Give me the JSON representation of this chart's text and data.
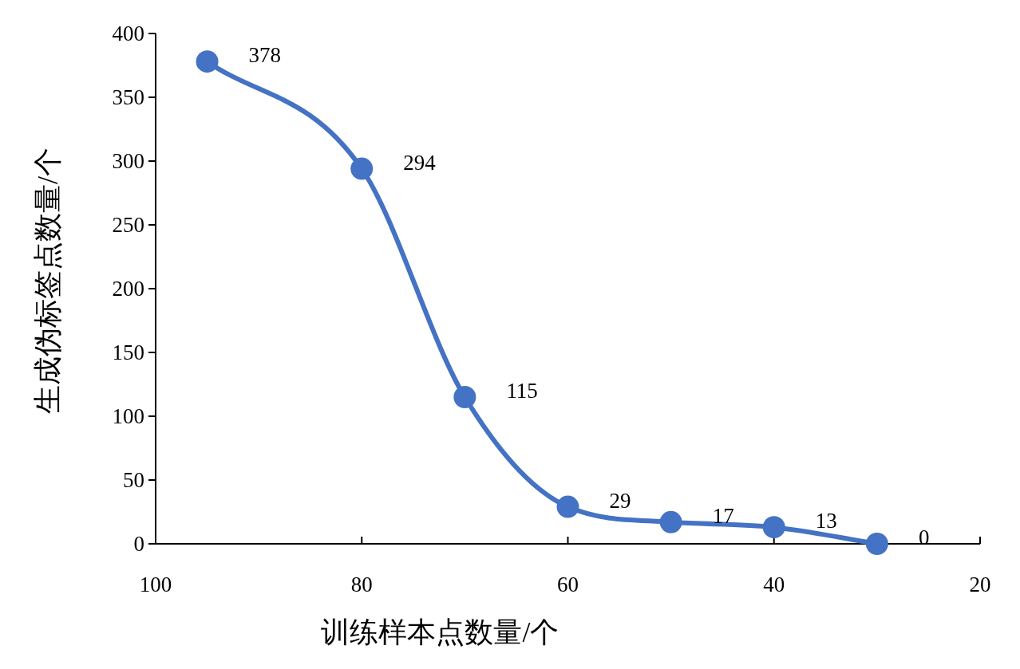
{
  "chart_data": {
    "type": "line",
    "xlabel": "训练样本点数量/个",
    "ylabel": "生成伪标签点数量/个",
    "x": [
      95,
      80,
      70,
      60,
      50,
      40,
      30
    ],
    "series": [
      {
        "color": "#4472c4",
        "values": [
          378,
          294,
          115,
          29,
          17,
          13,
          0
        ]
      }
    ],
    "xlim": [
      100,
      20
    ],
    "xticks": [
      100,
      80,
      60,
      40,
      20
    ],
    "ylim": [
      0,
      400
    ],
    "yticks": [
      0,
      50,
      100,
      150,
      200,
      250,
      300,
      350,
      400
    ],
    "data_labels": true,
    "marker": "circle"
  }
}
